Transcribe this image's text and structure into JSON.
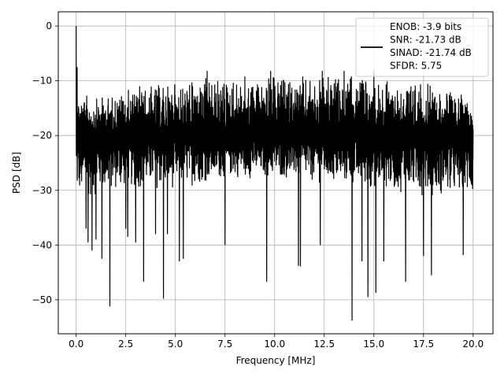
{
  "chart_data": {
    "type": "line",
    "title": "",
    "xlabel": "Frequency [MHz]",
    "ylabel": "PSD [dB]",
    "xlim": [
      -0.9,
      21.0
    ],
    "ylim": [
      -56.2,
      2.6
    ],
    "xticks": [
      0.0,
      2.5,
      5.0,
      7.5,
      10.0,
      12.5,
      15.0,
      17.5,
      20.0
    ],
    "xtick_labels": [
      "0.0",
      "2.5",
      "5.0",
      "7.5",
      "10.0",
      "12.5",
      "15.0",
      "17.5",
      "20.0"
    ],
    "yticks": [
      0,
      -10,
      -20,
      -30,
      -40,
      -50
    ],
    "ytick_labels": [
      "0",
      "−10",
      "−20",
      "−30",
      "−40",
      "−50"
    ],
    "grid": true,
    "legend_position": "top-right",
    "legend_lines": [
      "ENOB: -3.9 bits",
      "SNR: -21.73 dB",
      "SINAD: -21.74 dB",
      "SFDR: 5.75"
    ],
    "series": [
      {
        "color": "#000000",
        "x_range": [
          0.0,
          20.0
        ],
        "noise_floor_typical": -20,
        "upper_envelope": [
          [
            0.0,
            0.0
          ],
          [
            0.2,
            -12
          ],
          [
            1.0,
            -13
          ],
          [
            3.0,
            -11
          ],
          [
            5.0,
            -10
          ],
          [
            7.5,
            -9
          ],
          [
            10.0,
            -9
          ],
          [
            12.5,
            -9
          ],
          [
            15.0,
            -9
          ],
          [
            17.5,
            -10
          ],
          [
            20.0,
            -13
          ]
        ],
        "lower_envelope": [
          [
            0.2,
            -32
          ],
          [
            2.5,
            -30
          ],
          [
            5.0,
            -30
          ],
          [
            7.5,
            -28
          ],
          [
            10.0,
            -28
          ],
          [
            12.5,
            -29
          ],
          [
            15.0,
            -30
          ],
          [
            17.5,
            -31
          ],
          [
            20.0,
            -32
          ]
        ],
        "notable_dips": [
          [
            0.5,
            -37
          ],
          [
            0.6,
            -39.5
          ],
          [
            0.8,
            -41
          ],
          [
            1.0,
            -39
          ],
          [
            1.3,
            -42.5
          ],
          [
            1.7,
            -51.2
          ],
          [
            2.5,
            -37
          ],
          [
            2.6,
            -38.5
          ],
          [
            3.0,
            -39.5
          ],
          [
            3.4,
            -46.7
          ],
          [
            4.0,
            -38
          ],
          [
            4.4,
            -49.8
          ],
          [
            4.6,
            -38
          ],
          [
            5.2,
            -43
          ],
          [
            5.4,
            -42.5
          ],
          [
            7.5,
            -40
          ],
          [
            9.6,
            -46.7
          ],
          [
            11.2,
            -43.8
          ],
          [
            11.3,
            -43.9
          ],
          [
            12.3,
            -40
          ],
          [
            13.9,
            -53.8
          ],
          [
            14.4,
            -43
          ],
          [
            14.7,
            -49.5
          ],
          [
            15.1,
            -48.7
          ],
          [
            15.5,
            -43
          ],
          [
            16.6,
            -46.7
          ],
          [
            17.5,
            -42
          ],
          [
            17.9,
            -45.5
          ],
          [
            19.5,
            -41.8
          ]
        ],
        "notable_peaks": [
          [
            0.0,
            0.0
          ],
          [
            0.05,
            -7.5
          ],
          [
            3.2,
            -11
          ],
          [
            6.6,
            -8.2
          ],
          [
            9.8,
            -8.2
          ],
          [
            12.4,
            -8.2
          ],
          [
            13.5,
            -8.2
          ],
          [
            15.0,
            -8.2
          ]
        ]
      }
    ]
  }
}
